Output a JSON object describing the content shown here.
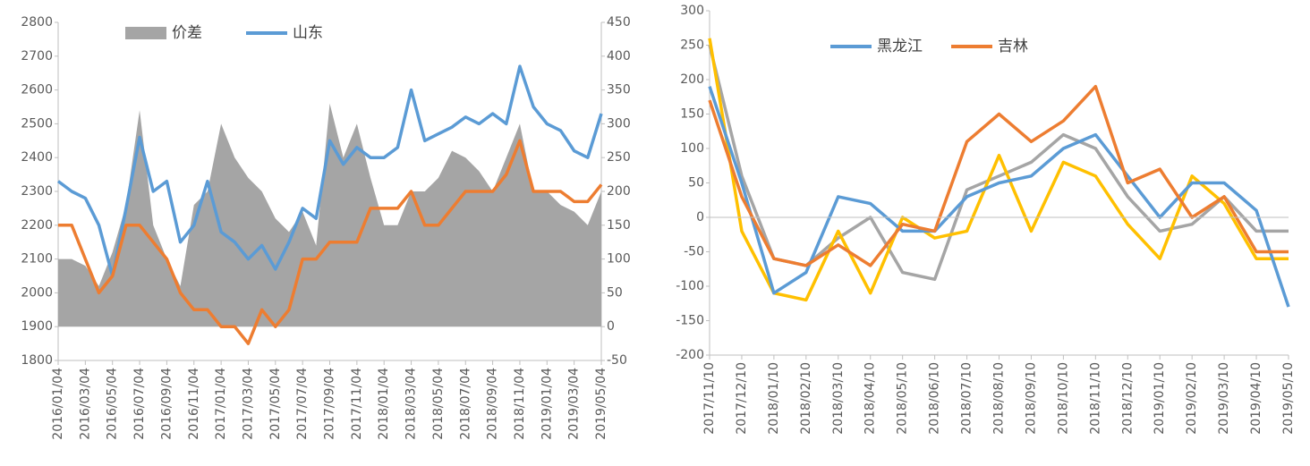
{
  "chart_data": [
    {
      "type": "line",
      "categories": [
        "2016/01/04",
        null,
        "2016/03/04",
        null,
        "2016/05/04",
        null,
        "2016/07/04",
        null,
        "2016/09/04",
        null,
        "2016/11/04",
        null,
        "2017/01/04",
        null,
        "2017/03/04",
        null,
        "2017/05/04",
        null,
        "2017/07/04",
        null,
        "2017/09/04",
        null,
        "2017/11/04",
        null,
        "2018/01/04",
        null,
        "2018/03/04",
        null,
        "2018/05/04",
        null,
        "2018/07/04",
        null,
        "2018/09/04",
        null,
        "2018/11/04",
        null,
        "2019/01/04",
        null,
        "2019/03/04",
        null,
        "2019/05/04"
      ],
      "series": [
        {
          "name": "价差",
          "color": "#a5a5a5",
          "kind": "area",
          "axis": "y2",
          "values": [
            100,
            100,
            90,
            60,
            110,
            180,
            320,
            150,
            100,
            60,
            180,
            200,
            300,
            250,
            220,
            200,
            160,
            140,
            170,
            120,
            330,
            250,
            300,
            220,
            150,
            150,
            200,
            200,
            220,
            260,
            250,
            230,
            200,
            250,
            300,
            200,
            200,
            180,
            170,
            150,
            200
          ]
        },
        {
          "name": "山东",
          "color": "#5b9bd5",
          "kind": "line",
          "values": [
            2330,
            2300,
            2280,
            2200,
            2050,
            2250,
            2460,
            2300,
            2330,
            2150,
            2200,
            2330,
            2180,
            2150,
            2100,
            2140,
            2070,
            2150,
            2250,
            2220,
            2450,
            2380,
            2430,
            2400,
            2400,
            2430,
            2600,
            2450,
            2470,
            2490,
            2520,
            2500,
            2530,
            2500,
            2670,
            2550,
            2500,
            2480,
            2420,
            2400,
            2530
          ]
        },
        {
          "color": "#ed7d31",
          "kind": "line",
          "values": [
            2200,
            2200,
            2100,
            2000,
            2050,
            2200,
            2200,
            2150,
            2100,
            2000,
            1950,
            1950,
            1900,
            1900,
            1850,
            1950,
            1900,
            1950,
            2100,
            2100,
            2150,
            2150,
            2150,
            2250,
            2250,
            2250,
            2300,
            2200,
            2200,
            2250,
            2300,
            2300,
            2300,
            2350,
            2450,
            2300,
            2300,
            2300,
            2270,
            2270,
            2320
          ]
        }
      ],
      "ylim": [
        1800,
        2800
      ],
      "yticks": [
        1800,
        1900,
        2000,
        2100,
        2200,
        2300,
        2400,
        2500,
        2600,
        2700,
        2800
      ],
      "y2lim": [
        -50,
        450
      ],
      "y2ticks": [
        -50,
        0,
        50,
        100,
        150,
        200,
        250,
        300,
        350,
        400,
        450
      ],
      "legend": "top"
    },
    {
      "type": "line",
      "categories": [
        "2017/11/10",
        "2017/12/10",
        "2018/01/10",
        "2018/02/10",
        "2018/03/10",
        "2018/04/10",
        "2018/05/10",
        "2018/06/10",
        "2018/07/10",
        "2018/08/10",
        "2018/09/10",
        "2018/10/10",
        "2018/11/10",
        "2018/12/10",
        "2019/01/10",
        "2019/02/10",
        "2019/03/10",
        "2019/04/10",
        "2019/05/10"
      ],
      "series": [
        {
          "color": "#a5a5a5",
          "kind": "line",
          "values": [
            250,
            60,
            -60,
            -70,
            -30,
            0,
            -80,
            -90,
            40,
            60,
            80,
            120,
            100,
            30,
            -20,
            -10,
            30,
            -20,
            -20
          ]
        },
        {
          "color": "#ffc000",
          "kind": "line",
          "values": [
            260,
            -20,
            -110,
            -120,
            -20,
            -110,
            0,
            -30,
            -20,
            90,
            -20,
            80,
            60,
            -10,
            -60,
            60,
            20,
            -60,
            -60
          ]
        },
        {
          "name": "黑龙江",
          "color": "#5b9bd5",
          "kind": "line",
          "values": [
            190,
            50,
            -110,
            -80,
            30,
            20,
            -20,
            -20,
            30,
            50,
            60,
            100,
            120,
            60,
            0,
            50,
            50,
            10,
            -130
          ]
        },
        {
          "name": "吉林",
          "color": "#ed7d31",
          "kind": "line",
          "values": [
            170,
            30,
            -60,
            -70,
            -40,
            -70,
            -10,
            -20,
            110,
            150,
            110,
            140,
            190,
            50,
            70,
            0,
            30,
            -50,
            -50
          ]
        }
      ],
      "ylim": [
        -200,
        300
      ],
      "yticks": [
        -200,
        -150,
        -100,
        -50,
        0,
        50,
        100,
        150,
        200,
        250,
        300
      ],
      "legend": "top"
    }
  ]
}
